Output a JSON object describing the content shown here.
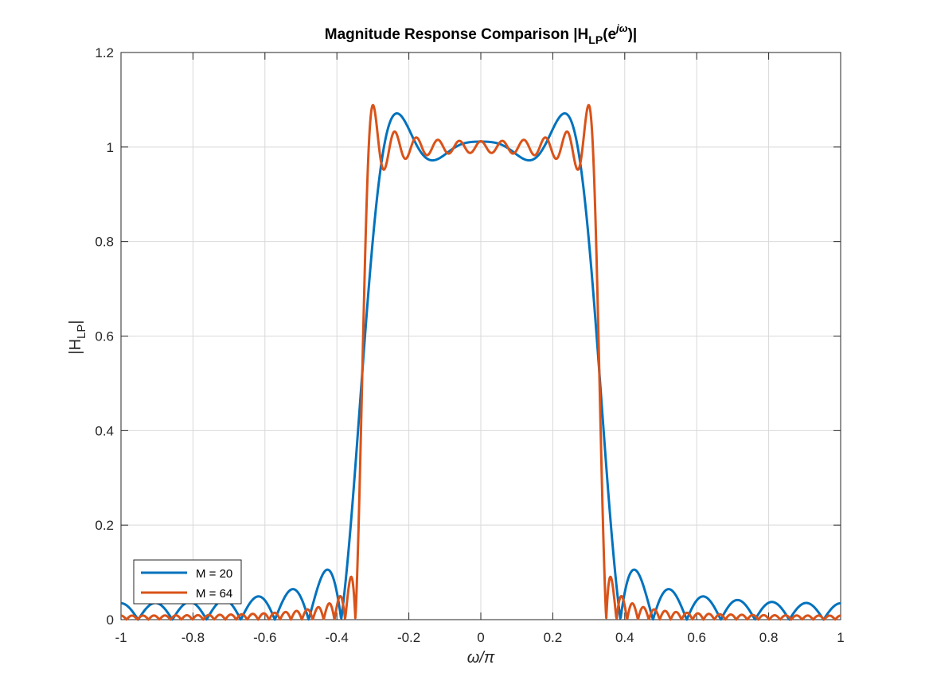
{
  "chart_data": {
    "type": "line",
    "title": {
      "main": "Magnitude Response Comparison |H",
      "sub": "LP",
      "mid": "(e",
      "sup": "jω",
      "end": ")|"
    },
    "xlabel": "ω/π",
    "ylabel": {
      "main": "|H",
      "sub": "LP",
      "end": "|"
    },
    "xlim": [
      -1,
      1
    ],
    "ylim": [
      0,
      1.2
    ],
    "x_ticks": [
      "-1",
      "-0.8",
      "-0.6",
      "-0.4",
      "-0.2",
      "0",
      "0.2",
      "0.4",
      "0.6",
      "0.8",
      "1"
    ],
    "x_tick_values": [
      -1,
      -0.8,
      -0.6,
      -0.4,
      -0.2,
      0,
      0.2,
      0.4,
      0.6,
      0.8,
      1
    ],
    "y_ticks": [
      "0",
      "0.2",
      "0.4",
      "0.6",
      "0.8",
      "1",
      "1.2"
    ],
    "y_tick_values": [
      0,
      0.2,
      0.4,
      0.6,
      0.8,
      1,
      1.2
    ],
    "grid": true,
    "legend_placement": "bottom-left",
    "cutoff": 0.33,
    "series": [
      {
        "name": "M = 20",
        "M": 20,
        "color": "#0072BD"
      },
      {
        "name": "M = 64",
        "M": 64,
        "color": "#D95319"
      }
    ]
  }
}
